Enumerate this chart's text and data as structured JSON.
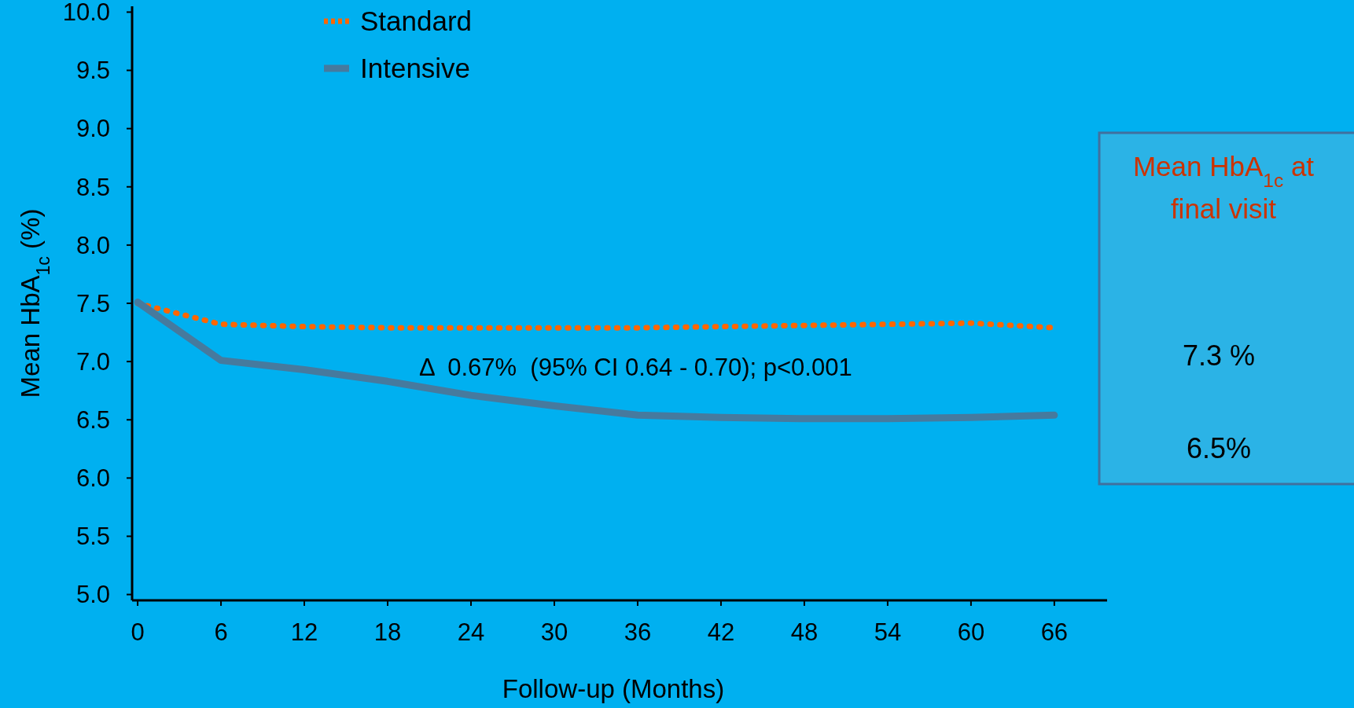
{
  "chart_data": [
    {
      "type": "line",
      "xlabel": "Follow-up (Months)",
      "ylabel": "Mean HbA$_{1c}$ (%)",
      "x": [
        0,
        6,
        12,
        18,
        24,
        30,
        36,
        42,
        48,
        54,
        60,
        66
      ],
      "series": [
        {
          "name": "Standard",
          "color": "#ff6600",
          "line_style": "dotted",
          "values": [
            7.5,
            7.32,
            7.3,
            7.29,
            7.29,
            7.29,
            7.29,
            7.3,
            7.31,
            7.32,
            7.33,
            7.29
          ]
        },
        {
          "name": "Intensive",
          "color": "#467a9e",
          "line_style": "solid",
          "values": [
            7.51,
            7.01,
            6.93,
            6.83,
            6.71,
            6.62,
            6.54,
            6.52,
            6.51,
            6.51,
            6.52,
            6.54
          ]
        }
      ],
      "xlim": [
        -0.4,
        69.8
      ],
      "xticks": [
        0,
        6,
        12,
        18,
        24,
        30,
        36,
        42,
        48,
        54,
        60,
        66
      ],
      "ylim": [
        4.95,
        10.05
      ],
      "yticks": [
        {
          "value": 5,
          "label": "5.0"
        },
        5.5,
        {
          "value": 6,
          "label": "6.0"
        },
        6.5,
        {
          "value": 7,
          "label": "7.0"
        },
        7.5,
        {
          "value": 8,
          "label": "8.0"
        },
        8.5,
        {
          "value": 9,
          "label": "9.0"
        },
        9.5,
        {
          "value": 10,
          "label": "10.0"
        }
      ],
      "legend": "top left",
      "annotations": [
        "Δ  0.67%  (95% CI 0.64 - 0.70); p<0.001"
      ]
    },
    {
      "type": "other",
      "title": "Mean HbA$_{1c}$ at final visit",
      "annotations": [
        "7.3 %",
        "6.5%"
      ]
    }
  ]
}
